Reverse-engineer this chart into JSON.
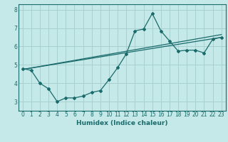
{
  "title": "",
  "xlabel": "Humidex (Indice chaleur)",
  "bg_color": "#c5e8e8",
  "grid_color": "#a8d0d0",
  "line_color": "#1a6b6b",
  "xlim": [
    -0.5,
    23.5
  ],
  "ylim": [
    2.5,
    8.3
  ],
  "xticks": [
    0,
    1,
    2,
    3,
    4,
    5,
    6,
    7,
    8,
    9,
    10,
    11,
    12,
    13,
    14,
    15,
    16,
    17,
    18,
    19,
    20,
    21,
    22,
    23
  ],
  "yticks": [
    3,
    4,
    5,
    6,
    7,
    8
  ],
  "line1_x": [
    0,
    1,
    2,
    3,
    4,
    5,
    6,
    7,
    8,
    9,
    10,
    11,
    12,
    13,
    14,
    15,
    16,
    17,
    18,
    19,
    20,
    21,
    22,
    23
  ],
  "line1_y": [
    4.8,
    4.7,
    4.0,
    3.7,
    3.0,
    3.2,
    3.2,
    3.3,
    3.5,
    3.6,
    4.2,
    4.85,
    5.6,
    6.85,
    6.95,
    7.8,
    6.85,
    6.3,
    5.75,
    5.8,
    5.8,
    5.65,
    6.4,
    6.5
  ],
  "line2_x": [
    0,
    23
  ],
  "line2_y": [
    4.75,
    6.65
  ],
  "line3_x": [
    0,
    23
  ],
  "line3_y": [
    4.75,
    6.5
  ]
}
